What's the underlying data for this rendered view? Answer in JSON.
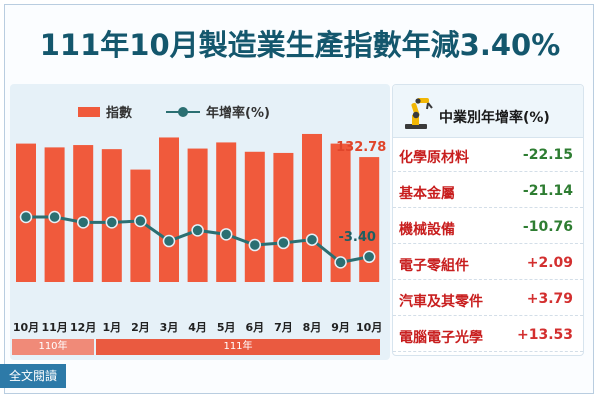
{
  "title": "111年10月製造業生產指數年減3.40%",
  "legend": {
    "index_label": "指數",
    "rate_label": "年增率(%)"
  },
  "chart_data": {
    "type": "bar",
    "categories": [
      "10月",
      "11月",
      "12月",
      "1月",
      "2月",
      "3月",
      "4月",
      "5月",
      "6月",
      "7月",
      "8月",
      "9月",
      "10月"
    ],
    "series": [
      {
        "name": "指數",
        "type": "bar",
        "values": [
          137.4,
          136.1,
          136.9,
          135.5,
          128.5,
          139.5,
          135.7,
          137.8,
          134.6,
          134.2,
          140.7,
          137.4,
          132.78
        ]
      },
      {
        "name": "年增率(%)",
        "type": "line",
        "values": [
          11.5,
          11.5,
          9.5,
          9.5,
          10.0,
          2.5,
          6.5,
          5.0,
          1.0,
          1.8,
          3.0,
          -5.5,
          -3.4
        ]
      }
    ],
    "annotations": [
      {
        "text": "132.78"
      },
      {
        "text": "-3.40"
      }
    ],
    "year_labels": [
      {
        "text": "110年",
        "start": 0,
        "end": 2
      },
      {
        "text": "111年",
        "start": 3,
        "end": 12
      }
    ],
    "grid": false
  },
  "side_panel": {
    "title": "中業別年增率(%)",
    "items": [
      {
        "name": "化學原材料",
        "value": "-22.15",
        "color": "#2e7d32"
      },
      {
        "name": "基本金屬",
        "value": "-21.14",
        "color": "#2e7d32"
      },
      {
        "name": "機械設備",
        "value": "-10.76",
        "color": "#2e7d32"
      },
      {
        "name": "電子零組件",
        "value": "+2.09",
        "color": "#d32f2f"
      },
      {
        "name": "汽車及其零件",
        "value": "+3.79",
        "color": "#d32f2f"
      },
      {
        "name": "電腦電子光學",
        "value": "+13.53",
        "color": "#d32f2f"
      }
    ]
  },
  "footer": {
    "full_read": "全文閱讀"
  },
  "colors": {
    "bar": "#f05a3c",
    "line": "#2b6f72",
    "title": "#14576d"
  }
}
